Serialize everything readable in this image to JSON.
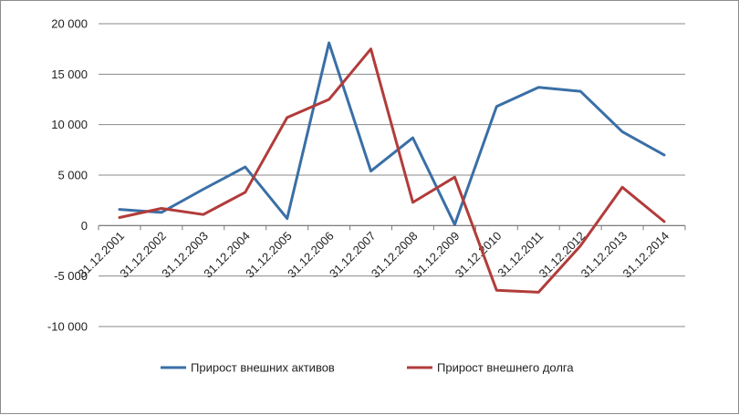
{
  "chart_data": {
    "type": "line",
    "title": "",
    "xlabel": "",
    "ylabel": "",
    "categories": [
      "31.12.2001",
      "31.12.2002",
      "31.12.2003",
      "31.12.2004",
      "31.12.2005",
      "31.12.2006",
      "31.12.2007",
      "31.12.2008",
      "31.12.2009",
      "31.12.2010",
      "31.12.2011",
      "31.12.2012",
      "31.12.2013",
      "31.12.2014"
    ],
    "ylim": [
      -10000,
      20000
    ],
    "yticks": [
      -10000,
      -5000,
      0,
      5000,
      10000,
      15000,
      20000
    ],
    "ytick_labels": [
      "-10 000",
      "-5 000",
      "0",
      "5 000",
      "10 000",
      "15 000",
      "20 000"
    ],
    "grid": "horizontal",
    "legend_position": "bottom",
    "series": [
      {
        "name": "Прирост внешних активов",
        "color": "#3a6fa6",
        "values": [
          1600,
          1300,
          3600,
          5800,
          700,
          18100,
          5400,
          8700,
          100,
          11800,
          13700,
          13300,
          9300,
          7000
        ]
      },
      {
        "name": "Прирост внешнего долга",
        "color": "#b13c3a",
        "values": [
          800,
          1700,
          1100,
          3300,
          10700,
          12500,
          17500,
          2300,
          4800,
          -6400,
          -6600,
          -2000,
          3800,
          400
        ]
      }
    ]
  }
}
